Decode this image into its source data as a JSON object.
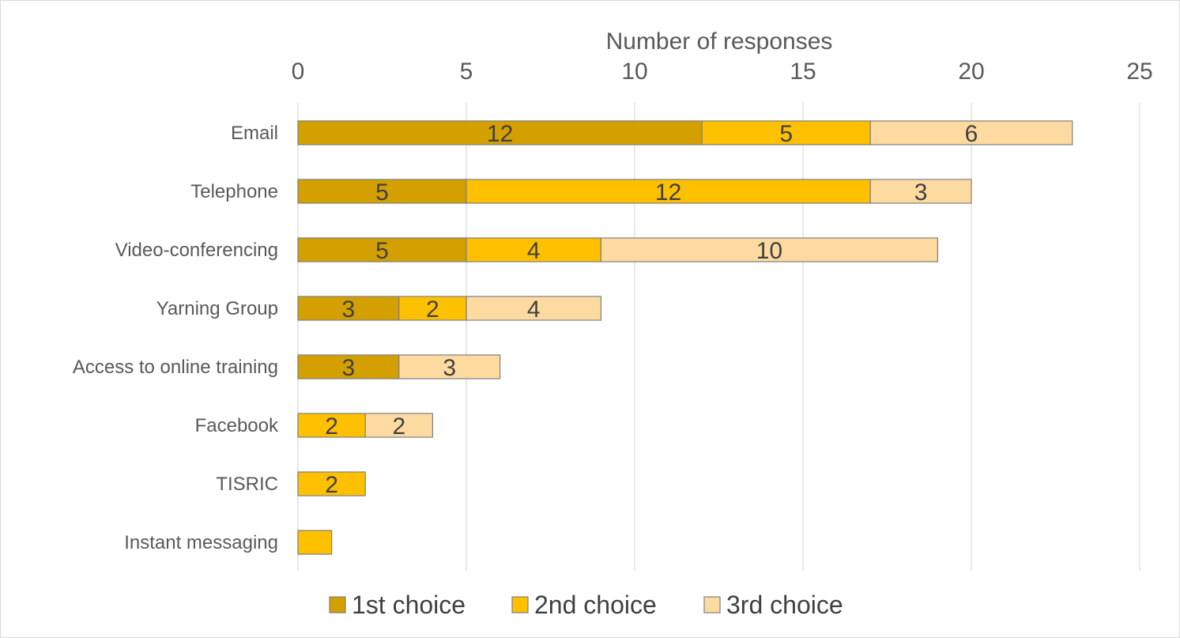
{
  "chart_data": {
    "type": "bar",
    "orientation": "horizontal",
    "stacked": true,
    "xlabel": "Number of responses",
    "xlim": [
      0,
      25
    ],
    "xticks": [
      0,
      5,
      10,
      15,
      20,
      25
    ],
    "x_axis_position": "top",
    "grid": true,
    "legend_position": "bottom",
    "categories": [
      "Email",
      "Telephone",
      "Video-conferencing",
      "Yarning Group",
      "Access to online training",
      "Facebook",
      "TISRIC",
      "Instant messaging"
    ],
    "series": [
      {
        "name": "1st choice",
        "color": "#d4a000",
        "values": [
          12,
          5,
          5,
          3,
          3,
          0,
          0,
          0
        ]
      },
      {
        "name": "2nd choice",
        "color": "#ffc000",
        "values": [
          5,
          12,
          4,
          2,
          0,
          2,
          2,
          1
        ]
      },
      {
        "name": "3rd choice",
        "color": "#fddba0",
        "values": [
          6,
          3,
          10,
          4,
          3,
          2,
          0,
          0
        ]
      }
    ],
    "data_labels_shown": [
      [
        true,
        true,
        true,
        true,
        true,
        false,
        false,
        false
      ],
      [
        true,
        true,
        true,
        true,
        false,
        true,
        true,
        false
      ],
      [
        true,
        true,
        true,
        true,
        true,
        true,
        false,
        false
      ]
    ]
  }
}
